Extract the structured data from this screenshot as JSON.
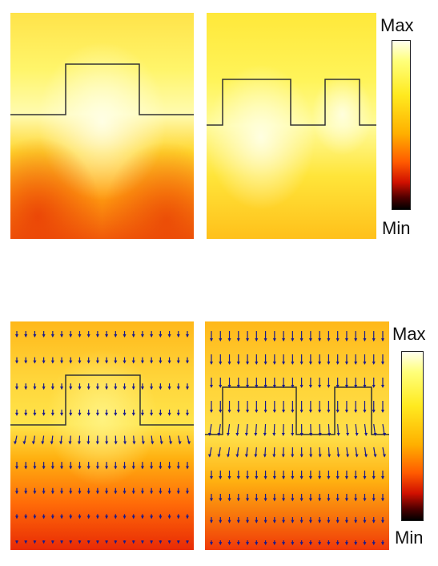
{
  "colorbar_top": {
    "max_label": "Max",
    "min_label": "Min"
  },
  "colorbar_bottom": {
    "max_label": "Max",
    "min_label": "Min"
  },
  "colors": {
    "max": "#ffffe6",
    "high": "#ffff40",
    "mid": "#ffb000",
    "low": "#e02000",
    "min": "#000000",
    "arrow": "#1a1a8c",
    "interface": "#222222"
  }
}
